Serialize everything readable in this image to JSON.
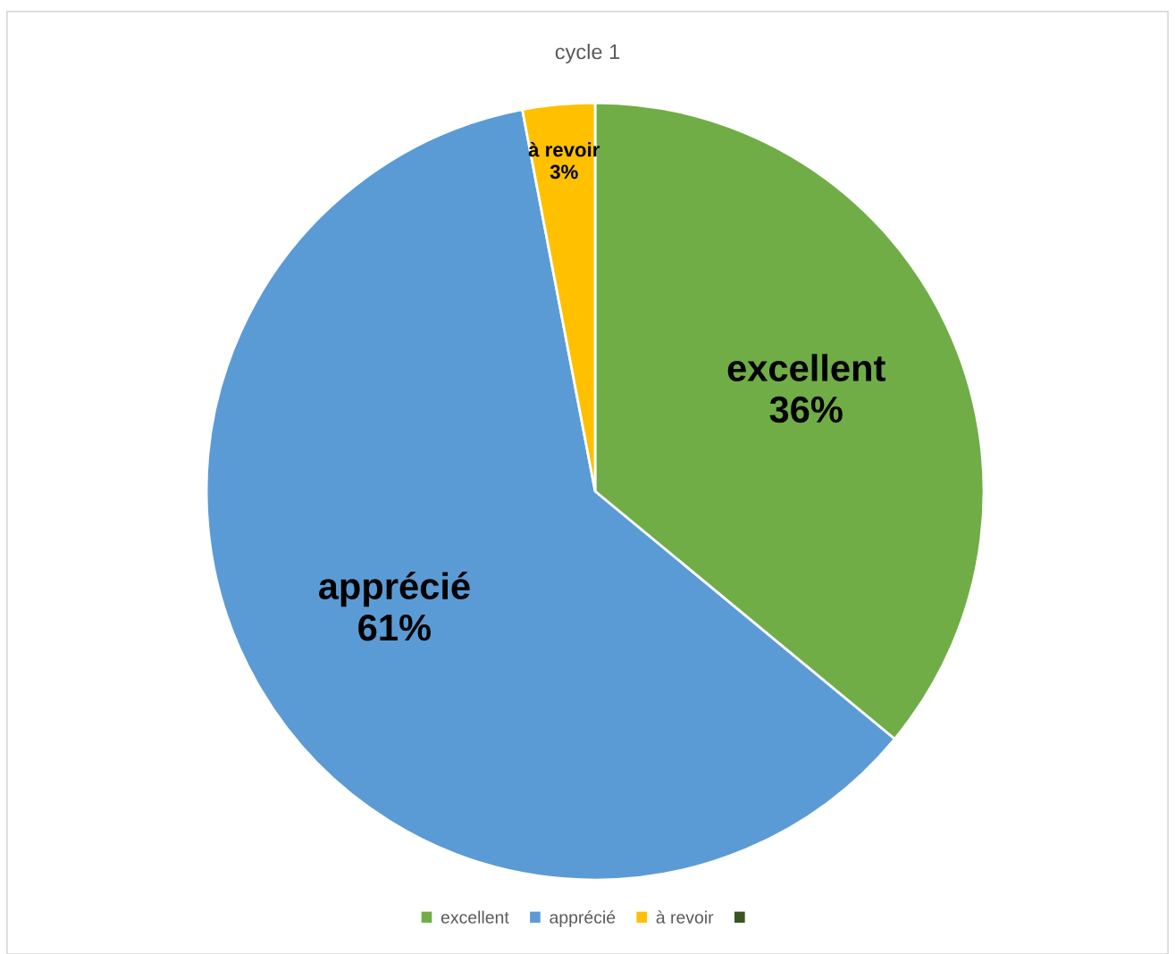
{
  "chart_data": {
    "type": "pie",
    "title": "cycle 1",
    "categories": [
      "excellent",
      "apprécié",
      "à revoir",
      null
    ],
    "values": [
      36,
      61,
      3,
      0
    ],
    "colors": [
      "#70ad47",
      "#5b9bd5",
      "#ffc000",
      "#375623"
    ],
    "value_labels": [
      "36%",
      "61%",
      "3%",
      null
    ],
    "legend": "bottom"
  }
}
